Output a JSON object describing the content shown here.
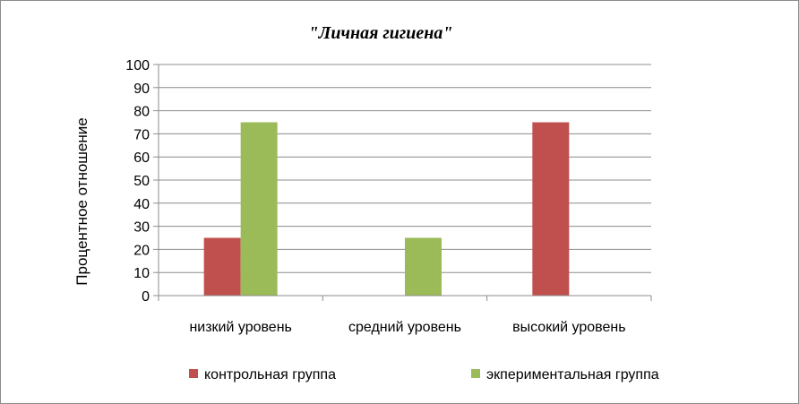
{
  "chart_data": {
    "type": "bar",
    "title": "\"Личная гигиена\"",
    "xlabel": "",
    "ylabel": "Процентное отношение",
    "ylim": [
      0,
      100
    ],
    "yticks": [
      0,
      10,
      20,
      30,
      40,
      50,
      60,
      70,
      80,
      90,
      100
    ],
    "grid": true,
    "legend_position": "bottom",
    "categories": [
      "низкий уровень",
      "средний уровень",
      "высокий уровень"
    ],
    "series": [
      {
        "name": "контрольная группа",
        "color": "#c0504d",
        "values": [
          25,
          0,
          75
        ]
      },
      {
        "name": "экпериментальная группа",
        "color": "#9bbb59",
        "values": [
          75,
          25,
          0
        ]
      }
    ]
  }
}
